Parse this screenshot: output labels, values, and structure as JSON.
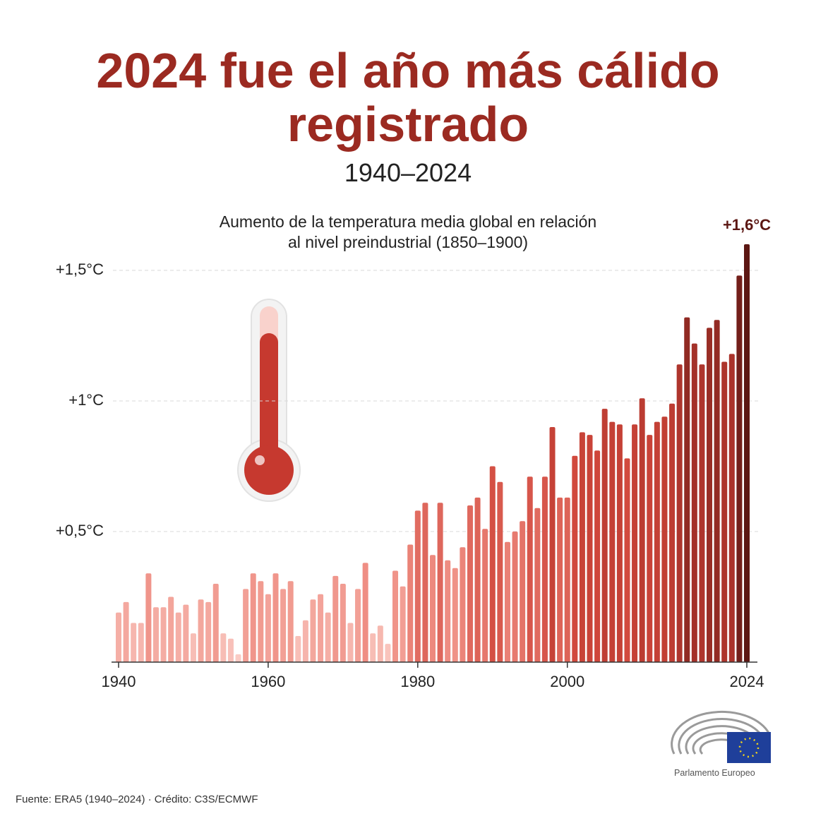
{
  "chart_data": {
    "type": "bar",
    "title": "2024 fue el año más cálido registrado",
    "subtitle": "1940–2024",
    "y_axis_caption": "Aumento de la temperatura media global en relación al nivel preindustrial (1850–1900)",
    "x": [
      1940,
      1941,
      1942,
      1943,
      1944,
      1945,
      1946,
      1947,
      1948,
      1949,
      1950,
      1951,
      1952,
      1953,
      1954,
      1955,
      1956,
      1957,
      1958,
      1959,
      1960,
      1961,
      1962,
      1963,
      1964,
      1965,
      1966,
      1967,
      1968,
      1969,
      1970,
      1971,
      1972,
      1973,
      1974,
      1975,
      1976,
      1977,
      1978,
      1979,
      1980,
      1981,
      1982,
      1983,
      1984,
      1985,
      1986,
      1987,
      1988,
      1989,
      1990,
      1991,
      1992,
      1993,
      1994,
      1995,
      1996,
      1997,
      1998,
      1999,
      2000,
      2001,
      2002,
      2003,
      2004,
      2005,
      2006,
      2007,
      2008,
      2009,
      2010,
      2011,
      2012,
      2013,
      2014,
      2015,
      2016,
      2017,
      2018,
      2019,
      2020,
      2021,
      2022,
      2023,
      2024
    ],
    "values": [
      0.19,
      0.23,
      0.15,
      0.15,
      0.34,
      0.21,
      0.21,
      0.25,
      0.19,
      0.22,
      0.11,
      0.24,
      0.23,
      0.3,
      0.11,
      0.09,
      0.03,
      0.28,
      0.34,
      0.31,
      0.26,
      0.34,
      0.28,
      0.31,
      0.1,
      0.16,
      0.24,
      0.26,
      0.19,
      0.33,
      0.3,
      0.15,
      0.28,
      0.38,
      0.11,
      0.14,
      0.07,
      0.35,
      0.29,
      0.45,
      0.58,
      0.61,
      0.41,
      0.61,
      0.39,
      0.36,
      0.44,
      0.6,
      0.63,
      0.51,
      0.75,
      0.69,
      0.46,
      0.5,
      0.54,
      0.71,
      0.59,
      0.71,
      0.9,
      0.63,
      0.63,
      0.79,
      0.88,
      0.87,
      0.81,
      0.97,
      0.92,
      0.91,
      0.78,
      0.91,
      1.01,
      0.87,
      0.92,
      0.94,
      0.99,
      1.14,
      1.32,
      1.22,
      1.14,
      1.28,
      1.31,
      1.15,
      1.18,
      1.48,
      1.6
    ],
    "color_scale": [
      "#fbd0c9",
      "#ee8b80",
      "#d0473b",
      "#a8322a",
      "#5c1713"
    ],
    "xlim": [
      1940,
      2024
    ],
    "xticks": [
      1940,
      1960,
      1980,
      2000,
      2024
    ],
    "ylim": [
      0,
      1.6
    ],
    "yticks": [
      {
        "value": 0.5,
        "label": "+0,5°C"
      },
      {
        "value": 1,
        "label": "+1°C"
      },
      {
        "value": 1.5,
        "label": "+1,5°C"
      }
    ],
    "grid": true,
    "annotation": {
      "text": "+1,6°C",
      "x": 2024,
      "y": 1.6
    },
    "source": "Fuente: ERA5 (1940–2024) · Crédito: C3S/ECMWF",
    "logo_text": "Parlamento Europeo"
  }
}
